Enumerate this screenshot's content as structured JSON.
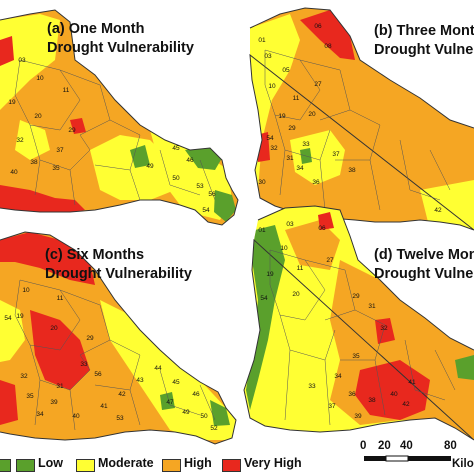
{
  "panels": [
    {
      "id": "a",
      "title_line1": "(a) One Month",
      "title_line2": "Drought Vulnerability",
      "labels": [
        "03",
        "10",
        "11",
        "19",
        "20",
        "29",
        "32",
        "37",
        "38",
        "35",
        "40",
        "45",
        "46",
        "49",
        "50",
        "53",
        "54",
        "56"
      ]
    },
    {
      "id": "b",
      "title_line1": "(b) Three Mont",
      "title_line2": "Drought Vulne",
      "labels": [
        "01",
        "03",
        "05",
        "06",
        "08",
        "10",
        "11",
        "19",
        "20",
        "27",
        "29",
        "30",
        "31",
        "32",
        "33",
        "34",
        "36",
        "37",
        "38",
        "42",
        "54"
      ]
    },
    {
      "id": "c",
      "title_line1": "(c) Six Months",
      "title_line2": "Drought Vulnerability",
      "labels": [
        "10",
        "11",
        "19",
        "20",
        "29",
        "31",
        "32",
        "33",
        "34",
        "35",
        "39",
        "40",
        "41",
        "42",
        "43",
        "44",
        "45",
        "46",
        "47",
        "49",
        "50",
        "52",
        "53",
        "54",
        "56"
      ]
    },
    {
      "id": "d",
      "title_line1": "(d) Twelve Mon",
      "title_line2": "Drought Vulner",
      "labels": [
        "01",
        "03",
        "06",
        "10",
        "11",
        "19",
        "20",
        "27",
        "29",
        "31",
        "32",
        "33",
        "34",
        "35",
        "36",
        "37",
        "38",
        "39",
        "40",
        "41",
        "42",
        "54"
      ]
    }
  ],
  "legend": {
    "items": [
      {
        "label": "Low",
        "color": "#5aa02c"
      },
      {
        "label": "Moderate",
        "color": "#ffff33"
      },
      {
        "label": "High",
        "color": "#f5a623"
      },
      {
        "label": "Very High",
        "color": "#e8281e"
      }
    ]
  },
  "scale": {
    "ticks": [
      "0",
      "20",
      "40",
      "80"
    ],
    "unit": "Kilom"
  }
}
